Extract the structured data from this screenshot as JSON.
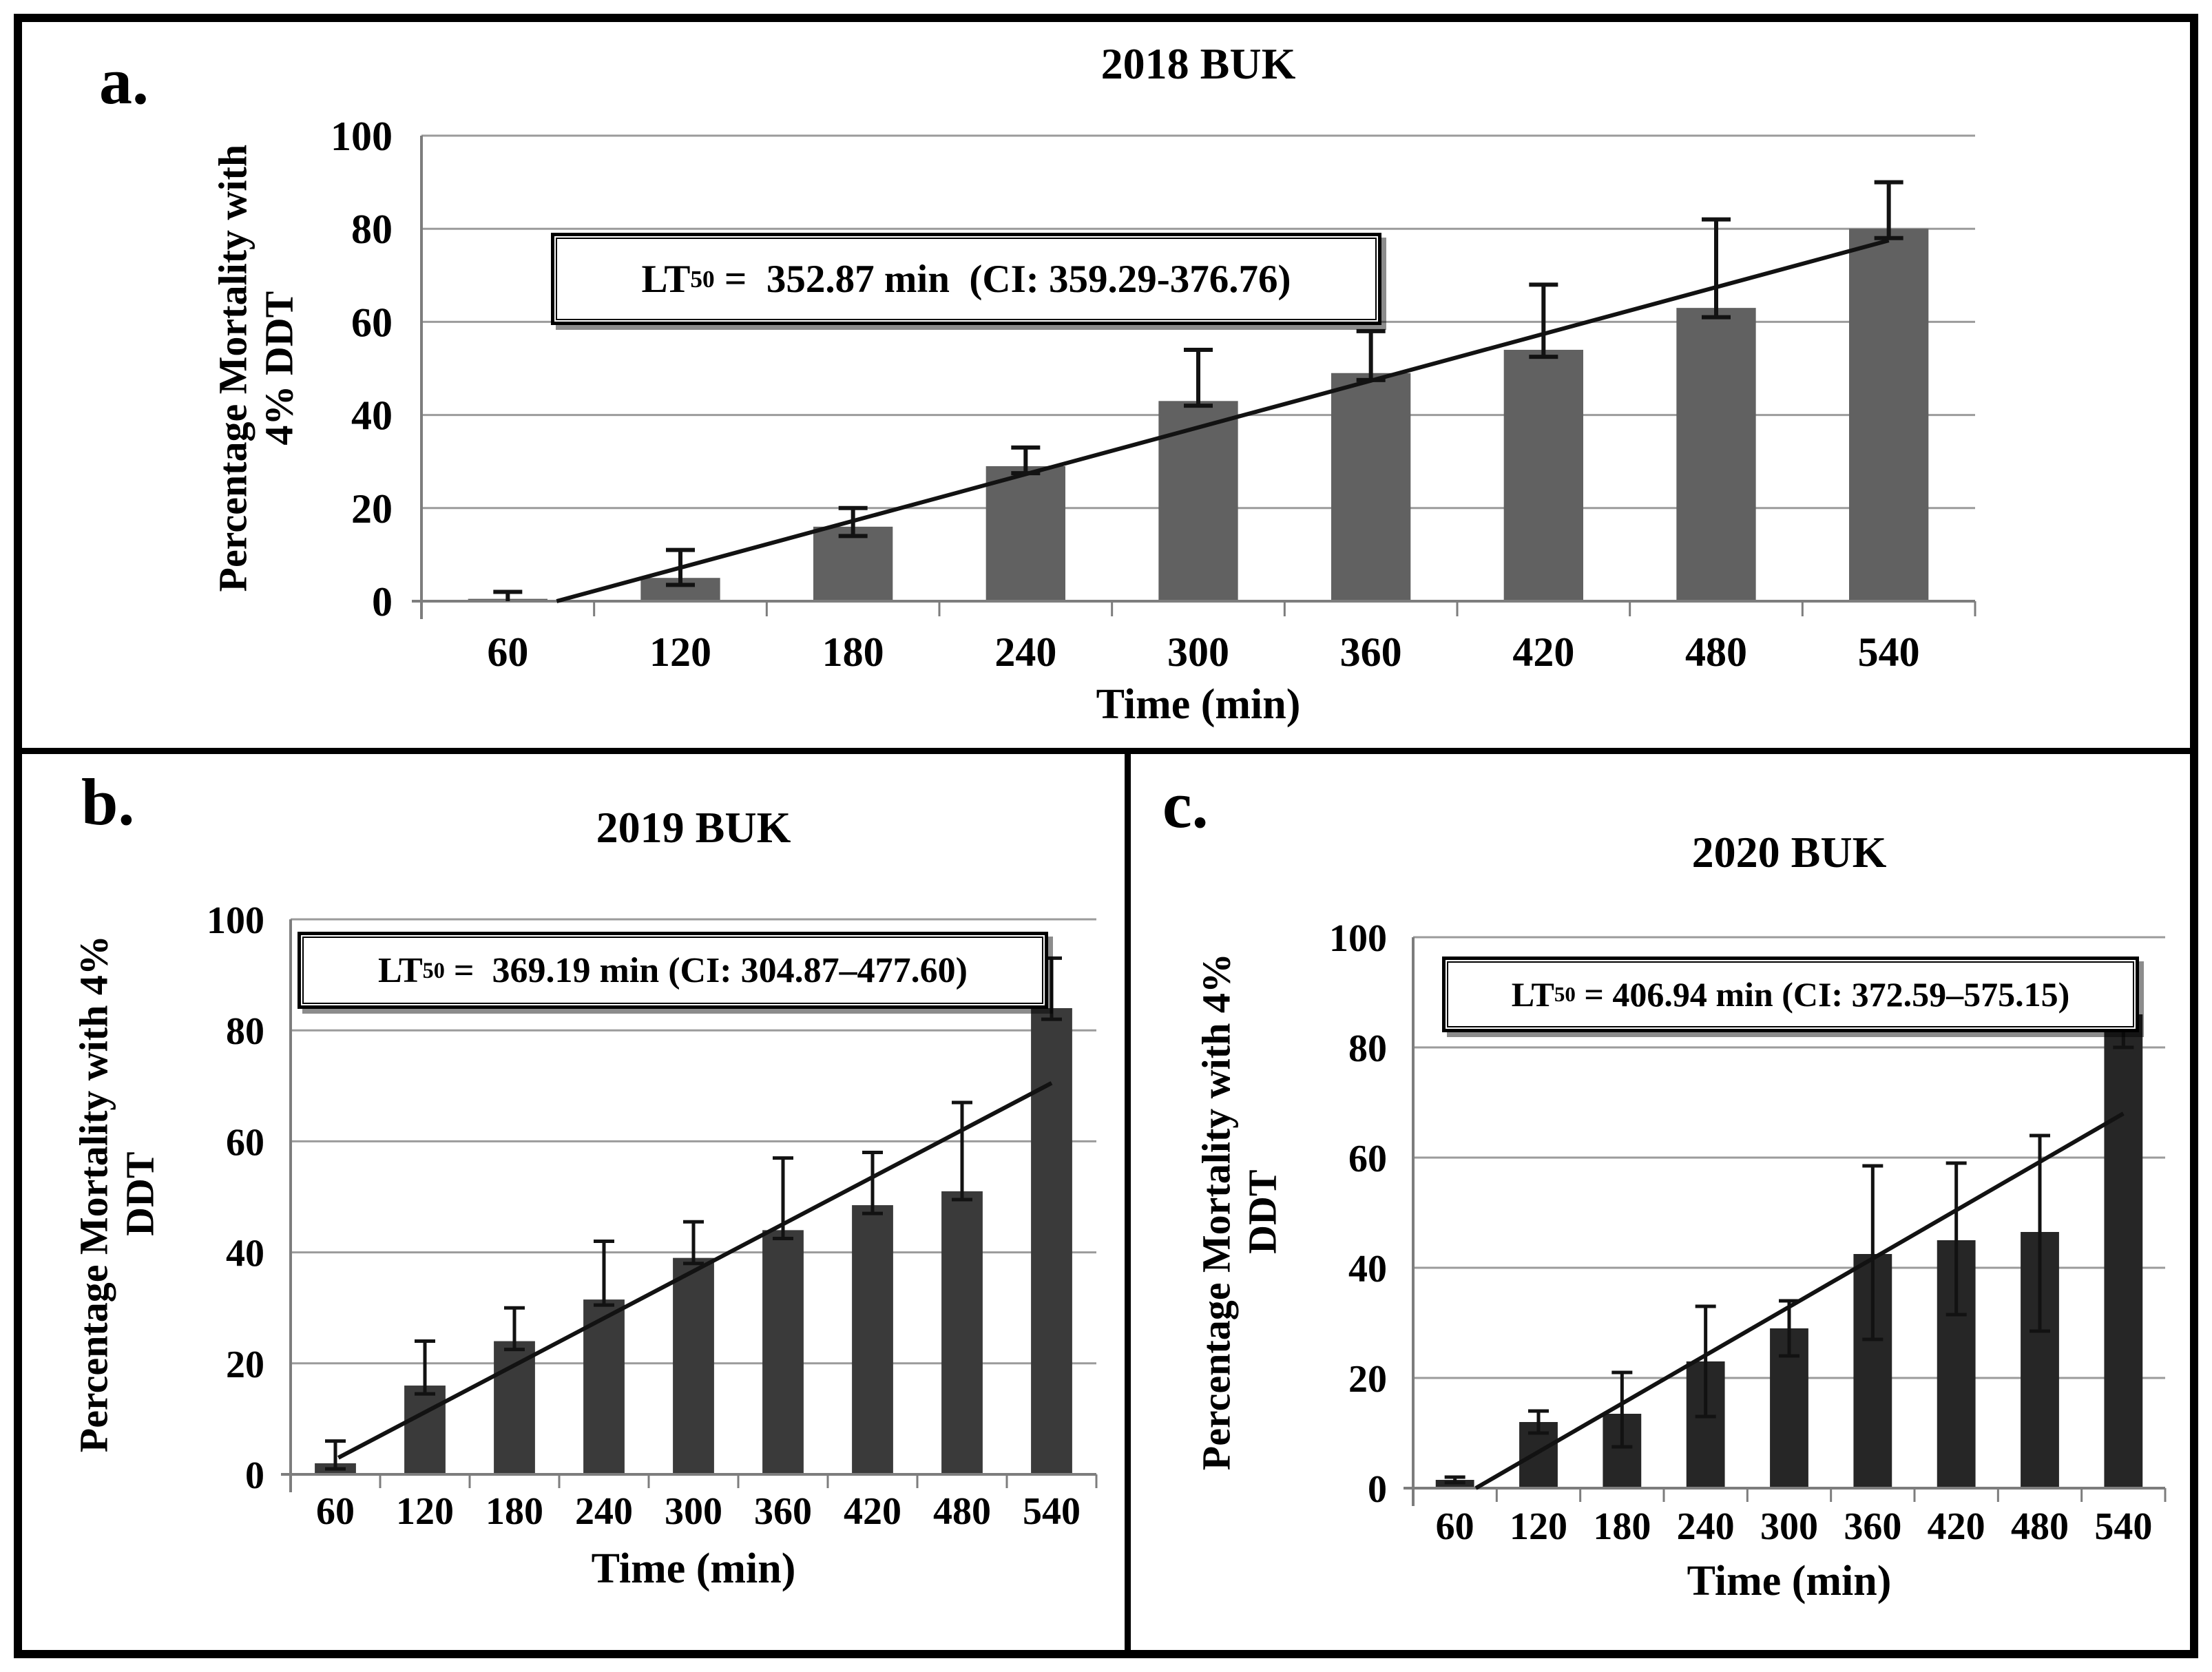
{
  "figure": {
    "description": "Three-panel bar chart figure of percentage mortality with 4% DDT over exposure time",
    "panels": [
      "a.",
      "b.",
      "c."
    ]
  },
  "chart_data": [
    {
      "type": "bar",
      "panel_label": "a.",
      "title": "2018 BUK",
      "xlabel": "Time (min)",
      "ylabel_line1": "Percentage Mortality  with",
      "ylabel_line2": "4% DDT",
      "lt50": {
        "base": "LT",
        "sub": "50",
        "rest": " =  352.87 min  (CI: 359.29-376.76)"
      },
      "categories": [
        60,
        120,
        180,
        240,
        300,
        360,
        420,
        480,
        540
      ],
      "values": [
        0.5,
        5,
        16,
        29,
        43,
        49,
        54,
        63,
        80
      ],
      "error_up": [
        2,
        11,
        20,
        33,
        54,
        58,
        68,
        82,
        90
      ],
      "error_down": [
        0,
        3.5,
        14,
        27.5,
        42,
        47.5,
        52.5,
        61,
        78
      ],
      "trendline": {
        "x1_min": 77,
        "y1": 0,
        "x2_min": 540,
        "y2": 77.5
      },
      "ylim": [
        0,
        100
      ],
      "yticks": [
        0,
        20,
        40,
        60,
        80,
        100
      ],
      "bar_color": "#616161",
      "grid_color": "#9b9b9b",
      "axis_color": "#7d7d7d",
      "line_color": "#121212",
      "grid": true,
      "legend_position": "none"
    },
    {
      "type": "bar",
      "panel_label": "b.",
      "title": "2019 BUK",
      "xlabel": "Time (min)",
      "ylabel_line1": "Percentage Mortality  with 4%",
      "ylabel_line2": "DDT",
      "lt50": {
        "base": "LT",
        "sub": "50",
        "rest": " =  369.19 min (CI: 304.87–477.60)"
      },
      "categories": [
        60,
        120,
        180,
        240,
        300,
        360,
        420,
        480,
        540
      ],
      "values": [
        2,
        16,
        24,
        31.5,
        39,
        44,
        48.5,
        51,
        84
      ],
      "error_up": [
        6,
        24,
        30,
        42,
        45.5,
        57,
        58,
        67,
        93
      ],
      "error_down": [
        1,
        14.5,
        22.5,
        30.5,
        38,
        42.5,
        47,
        49.5,
        82
      ],
      "trendline": {
        "x1_min": 62,
        "y1": 3,
        "x2_min": 540,
        "y2": 70.5
      },
      "ylim": [
        0,
        100
      ],
      "yticks": [
        0,
        20,
        40,
        60,
        80,
        100
      ],
      "bar_color": "#3a3a3a",
      "grid_color": "#9b9b9b",
      "axis_color": "#7d7d7d",
      "line_color": "#121212",
      "grid": true,
      "legend_position": "none"
    },
    {
      "type": "bar",
      "panel_label": "c.",
      "title": "2020 BUK",
      "xlabel": "Time (min)",
      "ylabel_line1": "Percentage Mortality  with 4%",
      "ylabel_line2": "DDT",
      "lt50": {
        "base": "LT",
        "sub": "50",
        "rest": " = 406.94 min (CI: 372.59–575.15)"
      },
      "categories": [
        60,
        120,
        180,
        240,
        300,
        360,
        420,
        480,
        540
      ],
      "values": [
        1.5,
        12,
        13.5,
        23,
        29,
        42.5,
        45,
        46.5,
        86
      ],
      "error_up": [
        2,
        14,
        21,
        33,
        34,
        58.5,
        59,
        64,
        93
      ],
      "error_down": [
        1,
        10,
        7.5,
        13,
        24,
        27,
        31.5,
        28.5,
        80
      ],
      "trendline": {
        "x1_min": 75,
        "y1": 0,
        "x2_min": 540,
        "y2": 68
      },
      "ylim": [
        0,
        100
      ],
      "yticks": [
        0,
        20,
        40,
        60,
        80,
        100
      ],
      "bar_color": "#262626",
      "grid_color": "#9b9b9b",
      "axis_color": "#7d7d7d",
      "line_color": "#121212",
      "grid": true,
      "legend_position": "none"
    }
  ]
}
